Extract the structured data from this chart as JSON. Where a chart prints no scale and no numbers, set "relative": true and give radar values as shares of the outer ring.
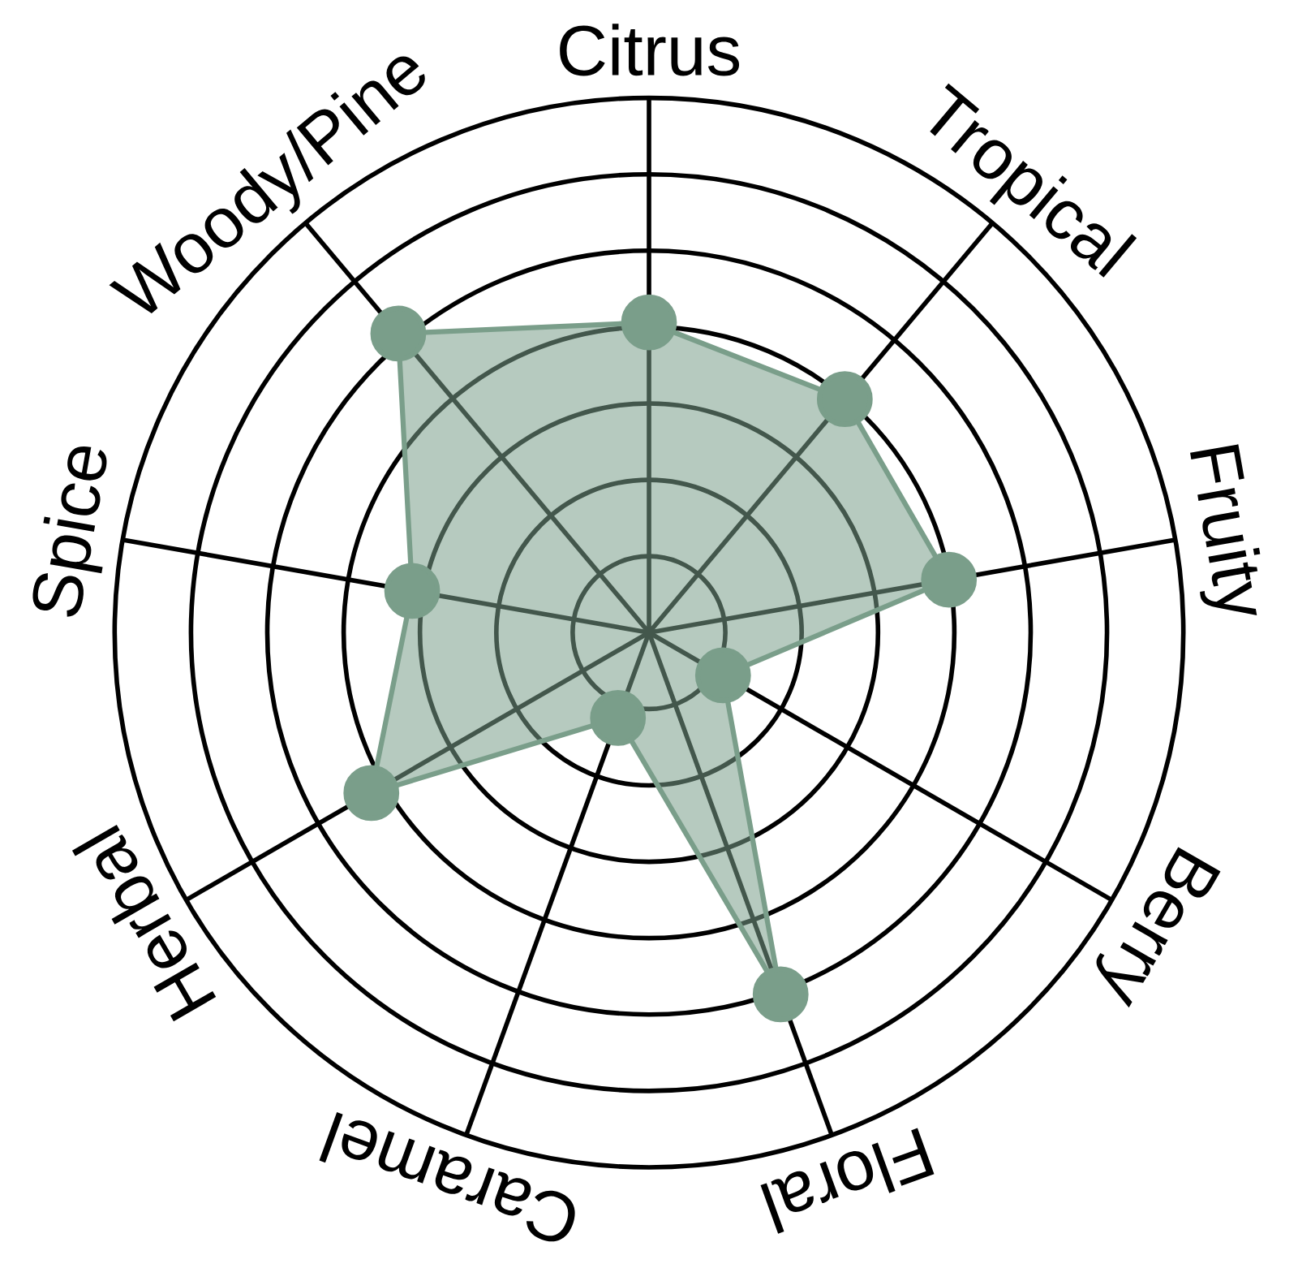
{
  "chart_data": {
    "type": "radar",
    "relative": true,
    "grid": true,
    "marker": "circle",
    "categories": [
      "Citrus",
      "Tropical",
      "Fruity",
      "Berry",
      "Floral",
      "Caramel",
      "Herbal",
      "Spice",
      "Woody/Pine"
    ],
    "series": [
      {
        "color": "#7a9e8a",
        "values": [
          0.58,
          0.57,
          0.57,
          0.16,
          0.72,
          0.17,
          0.6,
          0.45,
          0.73
        ]
      }
    ]
  }
}
